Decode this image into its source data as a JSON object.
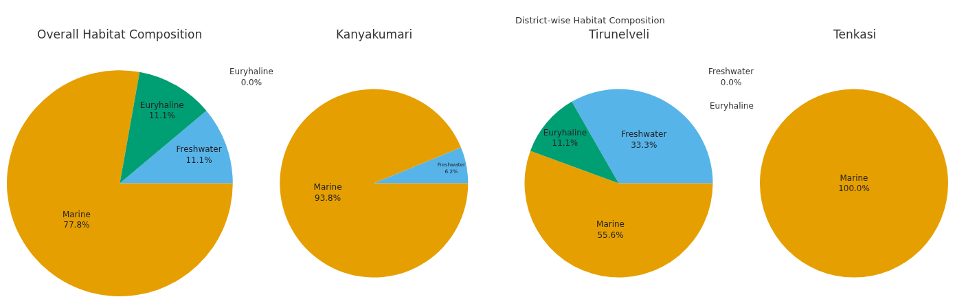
{
  "chart_data": [
    {
      "type": "pie",
      "title": "Overall Habitat Composition",
      "categories": [
        "Marine",
        "Freshwater",
        "Euryhaline"
      ],
      "values": [
        77.8,
        11.1,
        11.1
      ],
      "value_labels": [
        "77.8%",
        "11.1%",
        "11.1%"
      ],
      "colors": [
        "#e69f00",
        "#56b4e9",
        "#009e73"
      ]
    },
    {
      "type": "pie",
      "title": "Kanyakumari",
      "annotations": [
        "District-wise Habitat Composition"
      ],
      "categories": [
        "Marine",
        "Freshwater",
        "Euryhaline"
      ],
      "values": [
        93.8,
        6.2,
        0.0
      ],
      "value_labels": [
        "93.8%",
        "6.2%",
        "0.0%"
      ],
      "colors": [
        "#e69f00",
        "#56b4e9",
        "#009e73"
      ]
    },
    {
      "type": "pie",
      "title": "Tirunelveli",
      "categories": [
        "Marine",
        "Freshwater",
        "Euryhaline"
      ],
      "values": [
        55.6,
        33.3,
        11.1
      ],
      "value_labels": [
        "55.6%",
        "33.3%",
        "11.1%"
      ],
      "colors": [
        "#e69f00",
        "#56b4e9",
        "#009e73"
      ]
    },
    {
      "type": "pie",
      "title": "Tenkasi",
      "categories": [
        "Marine",
        "Freshwater",
        "Euryhaline"
      ],
      "values": [
        100.0,
        0.0,
        0.0
      ],
      "value_labels": [
        "100.0%",
        "0.0%",
        null
      ],
      "colors": [
        "#e69f00",
        "#56b4e9",
        "#009e73"
      ]
    }
  ]
}
